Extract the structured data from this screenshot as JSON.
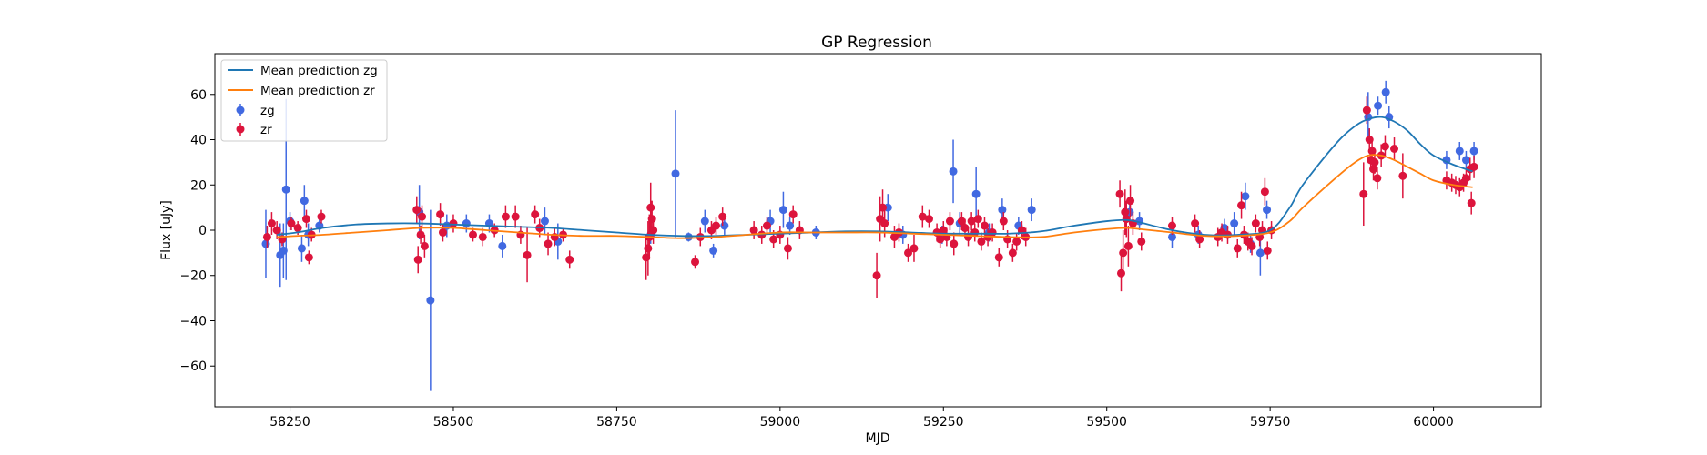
{
  "chart_data": {
    "type": "scatter",
    "title": "GP Regression",
    "xlabel": "MJD",
    "ylabel": "Flux [uJy]",
    "xlim": [
      58135,
      60165
    ],
    "ylim": [
      -78,
      78
    ],
    "xticks": [
      58250,
      58500,
      58750,
      59000,
      59250,
      59500,
      59750,
      60000
    ],
    "yticks": [
      -60,
      -40,
      -20,
      0,
      20,
      40,
      60
    ],
    "grid": false,
    "legend_position": "top-left",
    "colors": {
      "mean_zg": "#1f77b4",
      "mean_zr": "#ff7f0e",
      "zg": "#4169e1",
      "zr": "#dc143c"
    },
    "lines": [
      {
        "name": "Mean prediction zg",
        "color": "#1f77b4",
        "x": [
          58230,
          58260,
          58300,
          58350,
          58400,
          58450,
          58500,
          58550,
          58600,
          58650,
          58700,
          58750,
          58800,
          58850,
          58900,
          58950,
          59000,
          59050,
          59100,
          59150,
          59200,
          59250,
          59300,
          59350,
          59400,
          59450,
          59500,
          59530,
          59550,
          59600,
          59650,
          59700,
          59750,
          59780,
          59800,
          59850,
          59880,
          59900,
          59920,
          59940,
          59960,
          59980,
          60000,
          60030,
          60060
        ],
        "y": [
          -2,
          -1,
          1,
          2.5,
          3,
          3,
          2.5,
          2,
          1.5,
          1,
          0,
          -1,
          -2,
          -2.5,
          -2.5,
          -2,
          -1.5,
          -1,
          -0.5,
          -0.5,
          -1,
          -1.5,
          -1.5,
          -1.5,
          -0.5,
          2,
          4,
          4.5,
          3.5,
          0,
          -2,
          -2,
          0,
          10,
          20,
          38,
          46,
          49,
          50,
          48,
          44,
          38,
          33,
          29,
          26
        ]
      },
      {
        "name": "Mean prediction zr",
        "color": "#ff7f0e",
        "x": [
          58230,
          58260,
          58300,
          58350,
          58400,
          58450,
          58500,
          58550,
          58600,
          58650,
          58700,
          58750,
          58800,
          58850,
          58900,
          58950,
          59000,
          59050,
          59100,
          59150,
          59200,
          59250,
          59300,
          59350,
          59400,
          59450,
          59500,
          59530,
          59550,
          59600,
          59650,
          59700,
          59750,
          59780,
          59800,
          59850,
          59880,
          59900,
          59920,
          59940,
          59960,
          59980,
          60000,
          60030,
          60060
        ],
        "y": [
          -3,
          -2.5,
          -2,
          -1,
          0,
          1,
          1,
          0,
          -1,
          -2,
          -2.5,
          -2.5,
          -3,
          -3.5,
          -3,
          -2,
          -1,
          -1,
          -1,
          -1,
          -1.5,
          -2,
          -2.5,
          -3,
          -3,
          -1,
          0.5,
          1,
          0.5,
          -1,
          -2.5,
          -2.5,
          -1,
          4,
          10,
          23,
          30,
          33,
          33,
          31,
          28,
          25,
          22,
          20,
          19
        ]
      }
    ],
    "series": [
      {
        "name": "zg",
        "color": "#4169e1",
        "points": [
          [
            58213,
            -6,
            15
          ],
          [
            58235,
            -11,
            14
          ],
          [
            58240,
            -9,
            12
          ],
          [
            58244,
            18,
            40
          ],
          [
            58250,
            4,
            4
          ],
          [
            58268,
            -8,
            6
          ],
          [
            58272,
            13,
            7
          ],
          [
            58278,
            -2,
            5
          ],
          [
            58295,
            2,
            3
          ],
          [
            58448,
            8,
            12
          ],
          [
            58465,
            -31,
            40
          ],
          [
            58490,
            2,
            5
          ],
          [
            58520,
            3,
            4
          ],
          [
            58555,
            3,
            4
          ],
          [
            58575,
            -7,
            5
          ],
          [
            58640,
            4,
            6
          ],
          [
            58660,
            -5,
            8
          ],
          [
            58802,
            -2,
            4
          ],
          [
            58840,
            25,
            28
          ],
          [
            58860,
            -3,
            2
          ],
          [
            58885,
            4,
            5
          ],
          [
            58898,
            -9,
            3
          ],
          [
            58915,
            2,
            4
          ],
          [
            58985,
            4,
            5
          ],
          [
            59005,
            9,
            8
          ],
          [
            59015,
            2,
            4
          ],
          [
            59055,
            -1,
            3
          ],
          [
            59165,
            10,
            6
          ],
          [
            59188,
            -2,
            4
          ],
          [
            59248,
            -2,
            4
          ],
          [
            59265,
            26,
            14
          ],
          [
            59275,
            3,
            5
          ],
          [
            59300,
            16,
            12
          ],
          [
            59320,
            -1,
            4
          ],
          [
            59340,
            9,
            5
          ],
          [
            59365,
            2,
            4
          ],
          [
            59385,
            9,
            5
          ],
          [
            59535,
            8,
            5
          ],
          [
            59550,
            4,
            4
          ],
          [
            59600,
            -3,
            5
          ],
          [
            59640,
            -2,
            4
          ],
          [
            59680,
            1,
            4
          ],
          [
            59695,
            3,
            5
          ],
          [
            59712,
            15,
            6
          ],
          [
            59720,
            -6,
            4
          ],
          [
            59735,
            -10,
            10
          ],
          [
            59745,
            9,
            4
          ],
          [
            59900,
            50,
            11
          ],
          [
            59915,
            55,
            4
          ],
          [
            59927,
            61,
            5
          ],
          [
            59932,
            50,
            5
          ],
          [
            60020,
            31,
            4
          ],
          [
            60040,
            35,
            4
          ],
          [
            60050,
            31,
            4
          ],
          [
            60062,
            35,
            4
          ]
        ]
      },
      {
        "name": "zr",
        "color": "#dc143c",
        "points": [
          [
            58215,
            -3,
            5
          ],
          [
            58222,
            3,
            5
          ],
          [
            58230,
            0,
            4
          ],
          [
            58238,
            -4,
            3
          ],
          [
            58252,
            3,
            3
          ],
          [
            58262,
            1,
            3
          ],
          [
            58275,
            5,
            4
          ],
          [
            58279,
            -12,
            3
          ],
          [
            58283,
            -2,
            3
          ],
          [
            58298,
            6,
            3
          ],
          [
            58444,
            9,
            6
          ],
          [
            58446,
            -13,
            6
          ],
          [
            58450,
            -2,
            4
          ],
          [
            58452,
            6,
            5
          ],
          [
            58456,
            -7,
            5
          ],
          [
            58480,
            7,
            5
          ],
          [
            58484,
            -1,
            4
          ],
          [
            58500,
            3,
            4
          ],
          [
            58530,
            -2,
            3
          ],
          [
            58545,
            -3,
            4
          ],
          [
            58563,
            0,
            3
          ],
          [
            58580,
            6,
            5
          ],
          [
            58595,
            6,
            5
          ],
          [
            58603,
            -2,
            4
          ],
          [
            58613,
            -11,
            12
          ],
          [
            58625,
            7,
            4
          ],
          [
            58632,
            1,
            4
          ],
          [
            58645,
            -6,
            5
          ],
          [
            58655,
            -3,
            4
          ],
          [
            58668,
            -2,
            3
          ],
          [
            58678,
            -13,
            4
          ],
          [
            58795,
            -12,
            10
          ],
          [
            58798,
            -8,
            12
          ],
          [
            58800,
            -3,
            10
          ],
          [
            58802,
            10,
            11
          ],
          [
            58804,
            5,
            8
          ],
          [
            58806,
            0,
            6
          ],
          [
            58870,
            -14,
            3
          ],
          [
            58878,
            -3,
            4
          ],
          [
            58895,
            0,
            4
          ],
          [
            58902,
            2,
            4
          ],
          [
            58912,
            6,
            4
          ],
          [
            58960,
            0,
            4
          ],
          [
            58972,
            -2,
            4
          ],
          [
            58980,
            2,
            4
          ],
          [
            58990,
            -4,
            4
          ],
          [
            59000,
            -2,
            4
          ],
          [
            59012,
            -8,
            5
          ],
          [
            59020,
            7,
            4
          ],
          [
            59030,
            0,
            4
          ],
          [
            59148,
            -20,
            10
          ],
          [
            59153,
            5,
            10
          ],
          [
            59157,
            10,
            8
          ],
          [
            59160,
            3,
            6
          ],
          [
            59175,
            -3,
            5
          ],
          [
            59182,
            -1,
            4
          ],
          [
            59196,
            -10,
            4
          ],
          [
            59205,
            -8,
            6
          ],
          [
            59218,
            6,
            5
          ],
          [
            59228,
            5,
            4
          ],
          [
            59240,
            -1,
            4
          ],
          [
            59245,
            -4,
            4
          ],
          [
            59250,
            0,
            4
          ],
          [
            59255,
            -3,
            4
          ],
          [
            59260,
            4,
            4
          ],
          [
            59266,
            -6,
            5
          ],
          [
            59278,
            4,
            4
          ],
          [
            59283,
            1,
            4
          ],
          [
            59288,
            -3,
            4
          ],
          [
            59293,
            4,
            4
          ],
          [
            59298,
            -1,
            4
          ],
          [
            59303,
            5,
            4
          ],
          [
            59308,
            -5,
            4
          ],
          [
            59313,
            2,
            4
          ],
          [
            59318,
            -3,
            4
          ],
          [
            59325,
            -1,
            4
          ],
          [
            59335,
            -12,
            4
          ],
          [
            59342,
            4,
            4
          ],
          [
            59348,
            -4,
            4
          ],
          [
            59356,
            -10,
            4
          ],
          [
            59362,
            -5,
            4
          ],
          [
            59370,
            0,
            4
          ],
          [
            59376,
            -3,
            4
          ],
          [
            59520,
            16,
            6
          ],
          [
            59522,
            -19,
            8
          ],
          [
            59525,
            -10,
            10
          ],
          [
            59528,
            8,
            10
          ],
          [
            59530,
            5,
            8
          ],
          [
            59533,
            -7,
            9
          ],
          [
            59536,
            13,
            7
          ],
          [
            59540,
            3,
            5
          ],
          [
            59553,
            -5,
            4
          ],
          [
            59600,
            2,
            4
          ],
          [
            59635,
            3,
            4
          ],
          [
            59642,
            -4,
            4
          ],
          [
            59670,
            -3,
            4
          ],
          [
            59676,
            -1,
            4
          ],
          [
            59685,
            -2,
            4
          ],
          [
            59700,
            -8,
            4
          ],
          [
            59706,
            11,
            6
          ],
          [
            59710,
            -2,
            4
          ],
          [
            59716,
            -5,
            4
          ],
          [
            59722,
            -7,
            4
          ],
          [
            59728,
            3,
            4
          ],
          [
            59734,
            -3,
            4
          ],
          [
            59738,
            0,
            4
          ],
          [
            59742,
            17,
            6
          ],
          [
            59746,
            -9,
            4
          ],
          [
            59752,
            0,
            4
          ],
          [
            59893,
            16,
            14
          ],
          [
            59898,
            53,
            6
          ],
          [
            59902,
            40,
            5
          ],
          [
            59904,
            31,
            5
          ],
          [
            59906,
            35,
            5
          ],
          [
            59908,
            27,
            5
          ],
          [
            59910,
            30,
            5
          ],
          [
            59914,
            23,
            5
          ],
          [
            59920,
            33,
            5
          ],
          [
            59926,
            37,
            5
          ],
          [
            59940,
            36,
            5
          ],
          [
            59953,
            24,
            10
          ],
          [
            60020,
            22,
            4
          ],
          [
            60028,
            21,
            4
          ],
          [
            60034,
            20,
            4
          ],
          [
            60040,
            19,
            4
          ],
          [
            60046,
            21,
            4
          ],
          [
            60050,
            23,
            4
          ],
          [
            60056,
            27,
            5
          ],
          [
            60058,
            12,
            5
          ],
          [
            60062,
            28,
            5
          ]
        ]
      }
    ]
  }
}
